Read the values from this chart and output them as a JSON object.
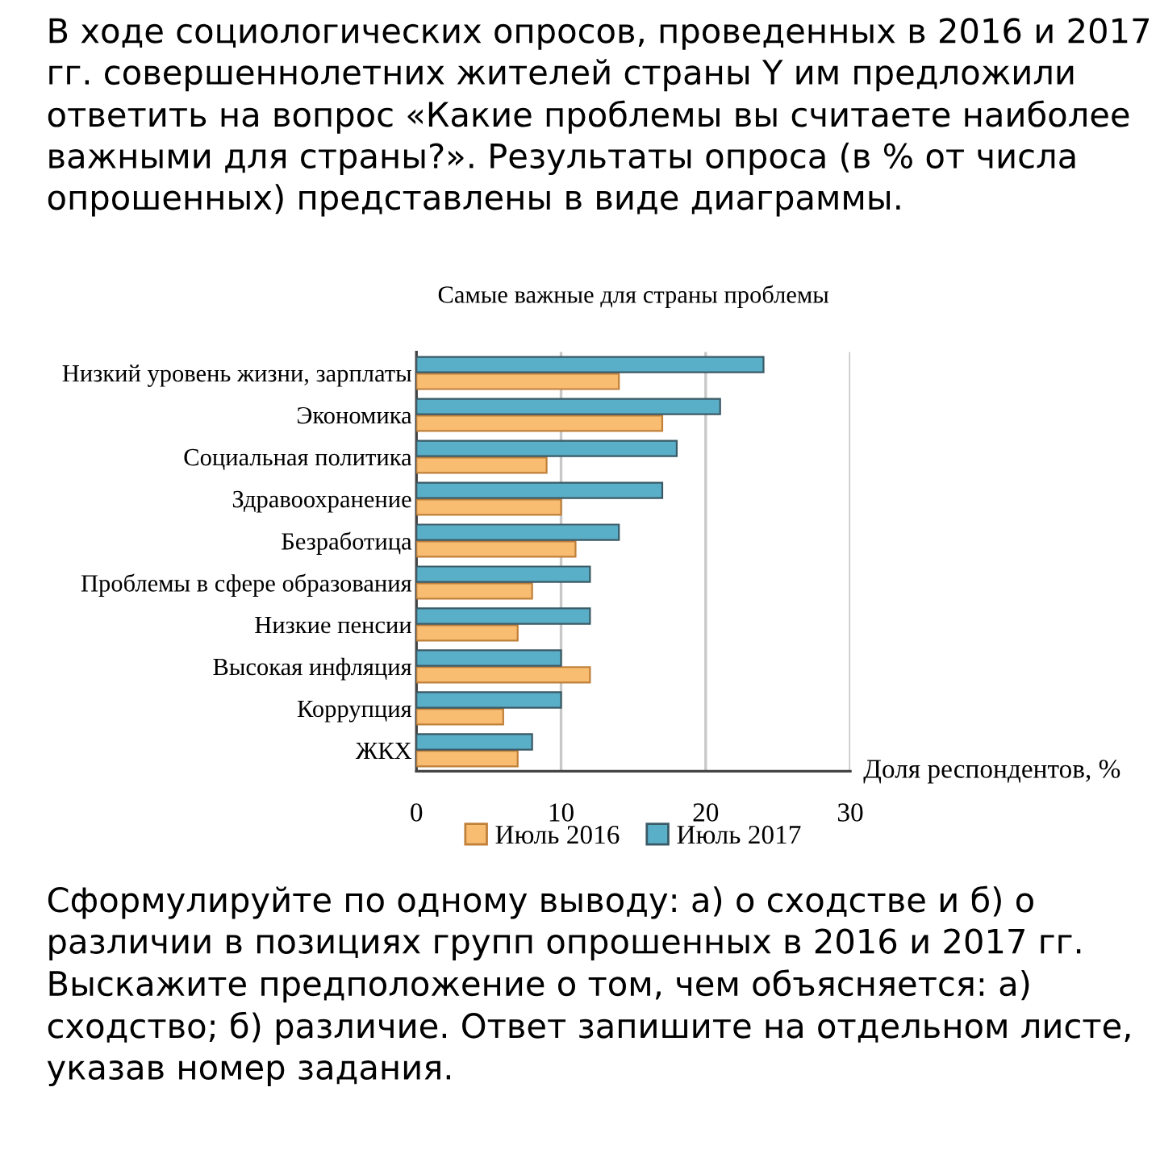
{
  "chart_data": {
    "type": "bar",
    "orientation": "horizontal",
    "title": "Самые важные для страны проблемы",
    "xlabel": "Доля респондентов, %",
    "categories": [
      "Низкий уровень жизни, зарплаты",
      "Экономика",
      "Социальная политика",
      "Здравоохранение",
      "Безработица",
      "Проблемы в сфере образования",
      "Низкие пенсии",
      "Высокая инфляция",
      "Коррупция",
      "ЖКХ"
    ],
    "series": [
      {
        "name": "Июль 2016",
        "color": "#f9bd72",
        "values": [
          14,
          17,
          9,
          10,
          11,
          8,
          7,
          12,
          6,
          7
        ]
      },
      {
        "name": "Июль 2017",
        "color": "#5aafc8",
        "values": [
          24,
          21,
          18,
          17,
          14,
          12,
          12,
          10,
          10,
          8
        ]
      }
    ],
    "xlim": [
      0,
      30
    ],
    "xticks": [
      0,
      10,
      20,
      30
    ],
    "grid": "x",
    "legend": "bottom",
    "annotations": [
      "В ходе социологических опросов, проведенных в 2016 и 2017 гг. совершеннолетних жителей страны Y им предложили ответить на вопрос «Какие проблемы вы считаете наиболее важными для страны?». Результаты опроса (в % от числа опрошенных) представлены в виде диаграммы.",
      "Сформулируйте по одному выводу: а) о сходстве и б) о различии в позициях групп опрошенных в 2016 и 2017 гг. Выскажите предположение о том, чем объясняется: а) сходство; б) различие. Ответ запишите на отдельном листе, указав номер задания."
    ]
  }
}
